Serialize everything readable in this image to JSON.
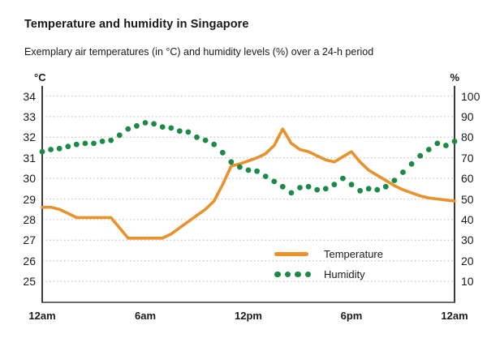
{
  "header": {
    "title": "Temperature and humidity in Singapore",
    "subtitle": "Exemplary air temperatures (in °C) and humidity levels (%) over a 24-h period"
  },
  "chart_data": {
    "type": "line",
    "title": "Temperature and humidity in Singapore",
    "subtitle": "Exemplary air temperatures (in °C) and humidity levels (%) over a 24-h period",
    "x_axis": {
      "tick_labels": [
        "12am",
        "6am",
        "12pm",
        "6pm",
        "12am"
      ],
      "tick_hours": [
        0,
        6,
        12,
        18,
        24
      ],
      "range_hours": [
        0,
        24
      ]
    },
    "y_left": {
      "unit": "°C",
      "min": 25,
      "max": 34,
      "ticks": [
        34,
        33,
        32,
        31,
        30,
        29,
        28,
        27,
        26,
        25
      ]
    },
    "y_right": {
      "unit": "%",
      "min": 10,
      "max": 100,
      "ticks": [
        100,
        90,
        80,
        70,
        60,
        50,
        40,
        30,
        20,
        10
      ]
    },
    "grid": "horizontal-dotted",
    "legend_position": "inside-bottom-center-right",
    "sample_start_hour": 0,
    "sample_step_hours": 0.5,
    "series": [
      {
        "name": "Temperature",
        "axis": "left",
        "style": "solid-line",
        "color": "#E8912D",
        "values": [
          28.6,
          28.6,
          28.5,
          28.3,
          28.1,
          28.1,
          28.1,
          28.1,
          28.1,
          27.6,
          27.1,
          27.1,
          27.1,
          27.1,
          27.1,
          27.3,
          27.6,
          27.9,
          28.2,
          28.5,
          28.9,
          29.7,
          30.6,
          30.7,
          30.85,
          31.0,
          31.2,
          31.6,
          32.4,
          31.7,
          31.4,
          31.3,
          31.1,
          30.9,
          30.8,
          31.05,
          31.3,
          30.8,
          30.4,
          30.15,
          29.9,
          29.65,
          29.45,
          29.3,
          29.15,
          29.05,
          29.0,
          28.95,
          28.9
        ]
      },
      {
        "name": "Humidity",
        "axis": "right",
        "style": "dotted-points",
        "color": "#1B8A47",
        "values": [
          73,
          74,
          74.5,
          75.5,
          76.5,
          77,
          77,
          78,
          78.5,
          81,
          84,
          85.5,
          87,
          86.5,
          85,
          84.5,
          83,
          82.5,
          80,
          78.5,
          76.5,
          72.5,
          68,
          65.5,
          64,
          63.5,
          61,
          58.5,
          56,
          53,
          55.5,
          56,
          54.5,
          55,
          57,
          60,
          57,
          54,
          55,
          54.5,
          56,
          59,
          63,
          67,
          71,
          74,
          77,
          76,
          78
        ]
      }
    ],
    "colors": {
      "grid": "#C8C8C8",
      "axis": "#3C3C3C",
      "text": "#1A1A1A",
      "background": "#FFFFFF"
    }
  }
}
